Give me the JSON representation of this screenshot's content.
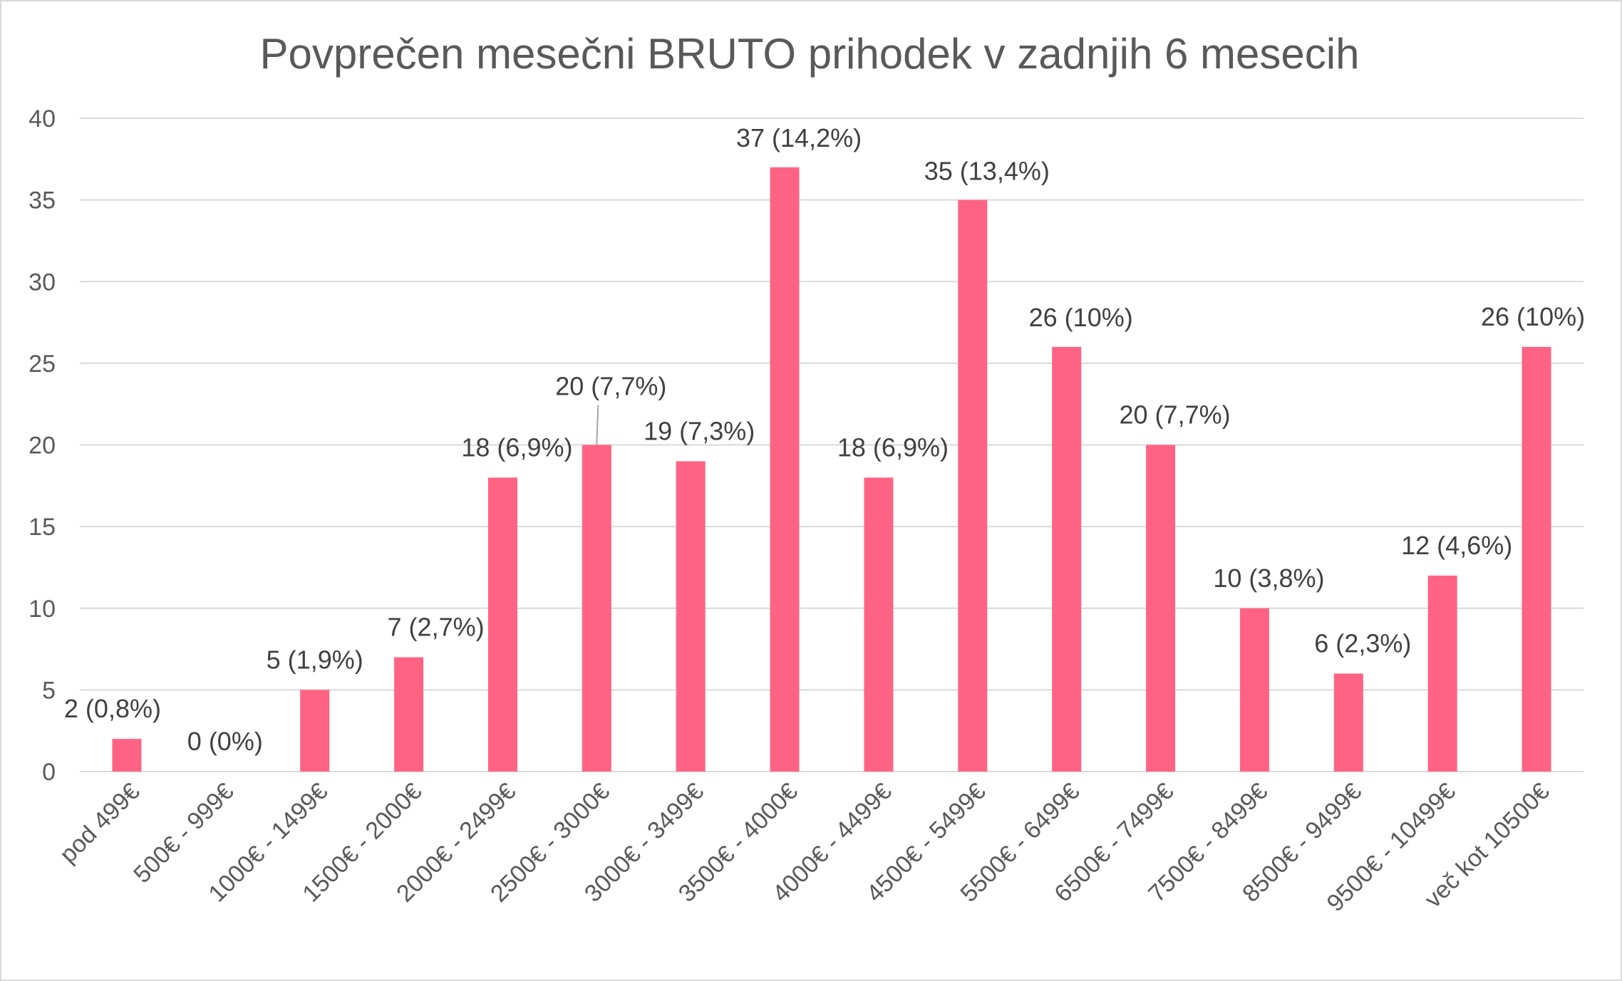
{
  "chart_data": {
    "type": "bar",
    "title": "Povprečen mesečni BRUTO prihodek v zadnjih 6 mesecih",
    "xlabel": "",
    "ylabel": "",
    "ylim": [
      0,
      40
    ],
    "yticks": [
      0,
      5,
      10,
      15,
      20,
      25,
      30,
      35,
      40
    ],
    "grid": true,
    "legend": "none",
    "bar_color": "#ff6384",
    "categories": [
      "pod 499€",
      "500€ - 999€",
      "1000€ - 1499€",
      "1500€ - 2000€",
      "2000€ - 2499€",
      "2500€ - 3000€",
      "3000€ - 3499€",
      "3500€ - 4000€",
      "4000€ - 4499€",
      "4500€ - 5499€",
      "5500€ - 6499€",
      "6500€ - 7499€",
      "7500€ - 8499€",
      "8500€ - 9499€",
      "9500€ - 10499€",
      "več kot 10500€"
    ],
    "values": [
      2,
      0,
      5,
      7,
      18,
      20,
      19,
      37,
      18,
      35,
      26,
      20,
      10,
      6,
      12,
      26
    ],
    "data_labels": [
      "2 (0,8%)",
      "0 (0%)",
      "5 (1,9%)",
      "7 (2,7%)",
      "18 (6,9%)",
      "20 (7,7%)",
      "19 (7,3%)",
      "37 (14,2%)",
      "18 (6,9%)",
      "35 (13,4%)",
      "26 (10%)",
      "20 (7,7%)",
      "10 (3,8%)",
      "6 (2,3%)",
      "12 (4,6%)",
      "26 (10%)"
    ]
  }
}
